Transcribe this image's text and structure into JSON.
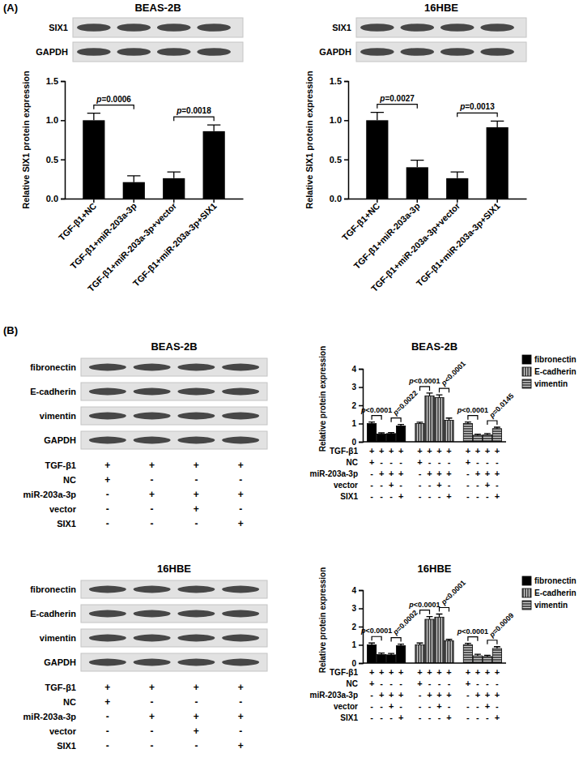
{
  "chart_data": [
    {
      "type": "bar",
      "panel": "(A)",
      "title": "BEAS-2B",
      "blot_labels": [
        "SIX1",
        "GAPDH"
      ],
      "ylabel": "Relative SIX1 protein expression",
      "categories": [
        "TGF-β1+NC",
        "TGF-β1+miR-203a-3p",
        "TGF-β1+miR-203a-3p+vector",
        "TGF-β1+miR-203a-3p+SIX1"
      ],
      "values": [
        1.0,
        0.21,
        0.26,
        0.86
      ],
      "errors": [
        0.09,
        0.08,
        0.08,
        0.08
      ],
      "color": "#000000",
      "ylim": [
        0,
        1.5
      ],
      "yticks": [
        {
          "value": 0,
          "label": "0.0"
        },
        {
          "value": 0.5,
          "label": "0.5"
        },
        {
          "value": 1,
          "label": "1.0"
        },
        {
          "value": 1.5,
          "label": "1.5"
        }
      ],
      "annotations": [
        {
          "pair": [
            0,
            1
          ],
          "text": "p=0.0006"
        },
        {
          "pair": [
            2,
            3
          ],
          "text": "p=0.0018"
        }
      ]
    },
    {
      "type": "bar",
      "title": "16HBE",
      "blot_labels": [
        "SIX1",
        "GAPDH"
      ],
      "ylabel": "Relative SIX1 protein expression",
      "categories": [
        "TGF-β1+NC",
        "TGF-β1+miR-203a-3p",
        "TGF-β1+miR-203a-3p+vector",
        "TGF-β1+miR-203a-3p+SIX1"
      ],
      "values": [
        1.0,
        0.4,
        0.26,
        0.91
      ],
      "errors": [
        0.1,
        0.09,
        0.08,
        0.08
      ],
      "color": "#000000",
      "ylim": [
        0,
        1.5
      ],
      "yticks": [
        {
          "value": 0,
          "label": "0.0"
        },
        {
          "value": 0.5,
          "label": "0.5"
        },
        {
          "value": 1,
          "label": "1.0"
        },
        {
          "value": 1.5,
          "label": "1.5"
        }
      ],
      "annotations": [
        {
          "pair": [
            0,
            1
          ],
          "text": "p=0.0027"
        },
        {
          "pair": [
            2,
            3
          ],
          "text": "p=0.0013"
        }
      ]
    },
    {
      "type": "bar",
      "panel": "(B)",
      "title": "BEAS-2B",
      "blot_labels": [
        "fibronectin",
        "E-cadherin",
        "vimentin",
        "GAPDH"
      ],
      "ylabel": "Relative protein expression",
      "conditions": [
        {
          "label": "TGF-β1",
          "signs": [
            "+",
            "+",
            "+",
            "+"
          ]
        },
        {
          "label": "NC",
          "signs": [
            "+",
            "-",
            "-",
            "-"
          ]
        },
        {
          "label": "miR-203a-3p",
          "signs": [
            "-",
            "+",
            "+",
            "+"
          ]
        },
        {
          "label": "vector",
          "signs": [
            "-",
            "-",
            "+",
            "-"
          ]
        },
        {
          "label": "SIX1",
          "signs": [
            "-",
            "-",
            "-",
            "+"
          ]
        }
      ],
      "series": [
        {
          "name": "fibronectin",
          "color": "#000000",
          "values": [
            1.0,
            0.42,
            0.45,
            0.87
          ],
          "errors": [
            0.08,
            0.07,
            0.06,
            0.08
          ]
        },
        {
          "name": "E-cadherin",
          "color": "#000000",
          "values": [
            1.0,
            2.52,
            2.42,
            1.18
          ],
          "errors": [
            0.07,
            0.15,
            0.15,
            0.12
          ]
        },
        {
          "name": "vimentin",
          "color": "#000000",
          "values": [
            1.0,
            0.36,
            0.38,
            0.72
          ],
          "errors": [
            0.08,
            0.06,
            0.07,
            0.08
          ]
        }
      ],
      "ylim": [
        0,
        4
      ],
      "yticks": [
        0,
        1,
        2,
        3,
        4
      ],
      "legend": "right",
      "annotations": [
        {
          "series": 0,
          "pair": [
            0,
            1
          ],
          "text": "p<0.0001"
        },
        {
          "series": 0,
          "pair": [
            2,
            3
          ],
          "text": "p=0.0022"
        },
        {
          "series": 1,
          "pair": [
            0,
            1
          ],
          "text": "p<0.0001"
        },
        {
          "series": 1,
          "pair": [
            2,
            3
          ],
          "text": "p<0.0001"
        },
        {
          "series": 2,
          "pair": [
            0,
            1
          ],
          "text": "p<0.0001"
        },
        {
          "series": 2,
          "pair": [
            2,
            3
          ],
          "text": "p=0.0145"
        }
      ]
    },
    {
      "type": "bar",
      "title": "16HBE",
      "blot_labels": [
        "fibronectin",
        "E-cadherin",
        "vimentin",
        "GAPDH"
      ],
      "ylabel": "Relative protein expression",
      "conditions": [
        {
          "label": "TGF-β1",
          "signs": [
            "+",
            "+",
            "+",
            "+"
          ]
        },
        {
          "label": "NC",
          "signs": [
            "+",
            "-",
            "-",
            "-"
          ]
        },
        {
          "label": "miR-203a-3p",
          "signs": [
            "-",
            "+",
            "+",
            "+"
          ]
        },
        {
          "label": "vector",
          "signs": [
            "-",
            "-",
            "+",
            "-"
          ]
        },
        {
          "label": "SIX1",
          "signs": [
            "-",
            "-",
            "-",
            "+"
          ]
        }
      ],
      "series": [
        {
          "name": "fibronectin",
          "color": "#000000",
          "values": [
            1.0,
            0.47,
            0.45,
            0.95
          ],
          "errors": [
            0.1,
            0.08,
            0.08,
            0.09
          ]
        },
        {
          "name": "E-cadherin",
          "color": "#000000",
          "values": [
            1.0,
            2.4,
            2.52,
            1.22
          ],
          "errors": [
            0.1,
            0.15,
            0.17,
            0.08
          ]
        },
        {
          "name": "vimentin",
          "color": "#000000",
          "values": [
            1.0,
            0.4,
            0.36,
            0.8
          ],
          "errors": [
            0.08,
            0.08,
            0.07,
            0.1
          ]
        }
      ],
      "ylim": [
        0,
        4
      ],
      "yticks": [
        0,
        1,
        2,
        3,
        4
      ],
      "legend": "right",
      "annotations": [
        {
          "series": 0,
          "pair": [
            0,
            1
          ],
          "text": "p<0.0001"
        },
        {
          "series": 0,
          "pair": [
            2,
            3
          ],
          "text": "p=0.0002"
        },
        {
          "series": 1,
          "pair": [
            0,
            1
          ],
          "text": "p<0.0001"
        },
        {
          "series": 1,
          "pair": [
            2,
            3
          ],
          "text": "p<0.0001"
        },
        {
          "series": 2,
          "pair": [
            0,
            1
          ],
          "text": "p<0.0001"
        },
        {
          "series": 2,
          "pair": [
            2,
            3
          ],
          "text": "p=0.0009"
        }
      ]
    }
  ]
}
